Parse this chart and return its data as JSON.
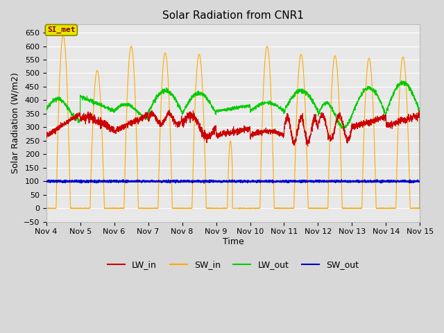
{
  "title": "Solar Radiation from CNR1",
  "xlabel": "Time",
  "ylabel": "Solar Radiation (W/m2)",
  "ylim": [
    -50,
    680
  ],
  "yticks": [
    -50,
    0,
    50,
    100,
    150,
    200,
    250,
    300,
    350,
    400,
    450,
    500,
    550,
    600,
    650
  ],
  "xtick_labels": [
    "Nov 4",
    "Nov 5",
    "Nov 6",
    "Nov 7",
    "Nov 8",
    "Nov 9",
    "Nov 10",
    "Nov 11",
    "Nov 12",
    "Nov 13",
    "Nov 14",
    "Nov 15"
  ],
  "fig_bg_color": "#d8d8d8",
  "plot_bg_color": "#e8e8e8",
  "grid_color": "#ffffff",
  "annotation_text": "SI_met",
  "annotation_box_facecolor": "#e8e800",
  "annotation_box_edgecolor": "#888800",
  "annotation_text_color": "#880000",
  "colors": {
    "LW_in": "#cc0000",
    "SW_in": "#ffaa00",
    "LW_out": "#00cc00",
    "SW_out": "#0000cc"
  },
  "legend_labels": [
    "LW_in",
    "SW_in",
    "LW_out",
    "SW_out"
  ],
  "figsize": [
    6.4,
    4.8
  ],
  "dpi": 100
}
